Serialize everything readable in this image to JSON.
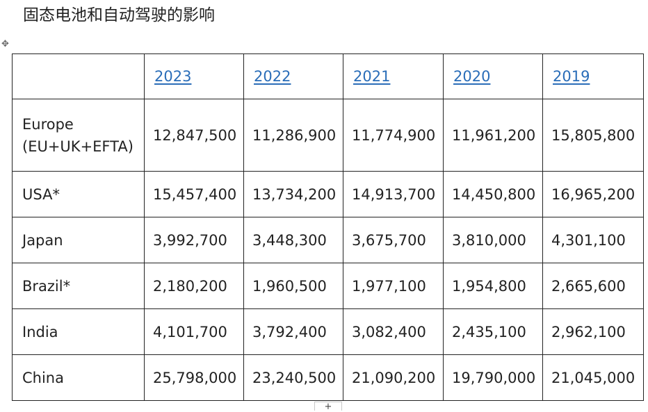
{
  "document": {
    "title": "固态电池和自动驾驶的影响"
  },
  "table": {
    "years": [
      "2023",
      "2022",
      "2021",
      "2020",
      "2019"
    ],
    "rows": [
      {
        "label": "Europe (EU+UK+EFTA)",
        "values": [
          "12,847,500",
          "11,286,900",
          "11,774,900",
          "11,961,200",
          "15,805,800"
        ]
      },
      {
        "label": "USA*",
        "values": [
          "15,457,400",
          "13,734,200",
          "14,913,700",
          "14,450,800",
          "16,965,200"
        ]
      },
      {
        "label": "Japan",
        "values": [
          "3,992,700",
          "3,448,300",
          "3,675,700",
          "3,810,000",
          "4,301,100"
        ]
      },
      {
        "label": "Brazil*",
        "values": [
          "2,180,200",
          "1,960,500",
          "1,977,100",
          "1,954,800",
          "2,665,600"
        ]
      },
      {
        "label": "India",
        "values": [
          "4,101,700",
          "3,792,400",
          "3,082,400",
          "2,435,100",
          "2,962,100"
        ]
      },
      {
        "label": "China",
        "values": [
          "25,798,000",
          "23,240,500",
          "21,090,200",
          "19,790,000",
          "21,045,000"
        ]
      }
    ]
  },
  "icons": {
    "move_handle": "move-arrows-icon",
    "add_row": "plus-icon"
  },
  "colors": {
    "link": "#2a6db8",
    "border": "#222222"
  }
}
